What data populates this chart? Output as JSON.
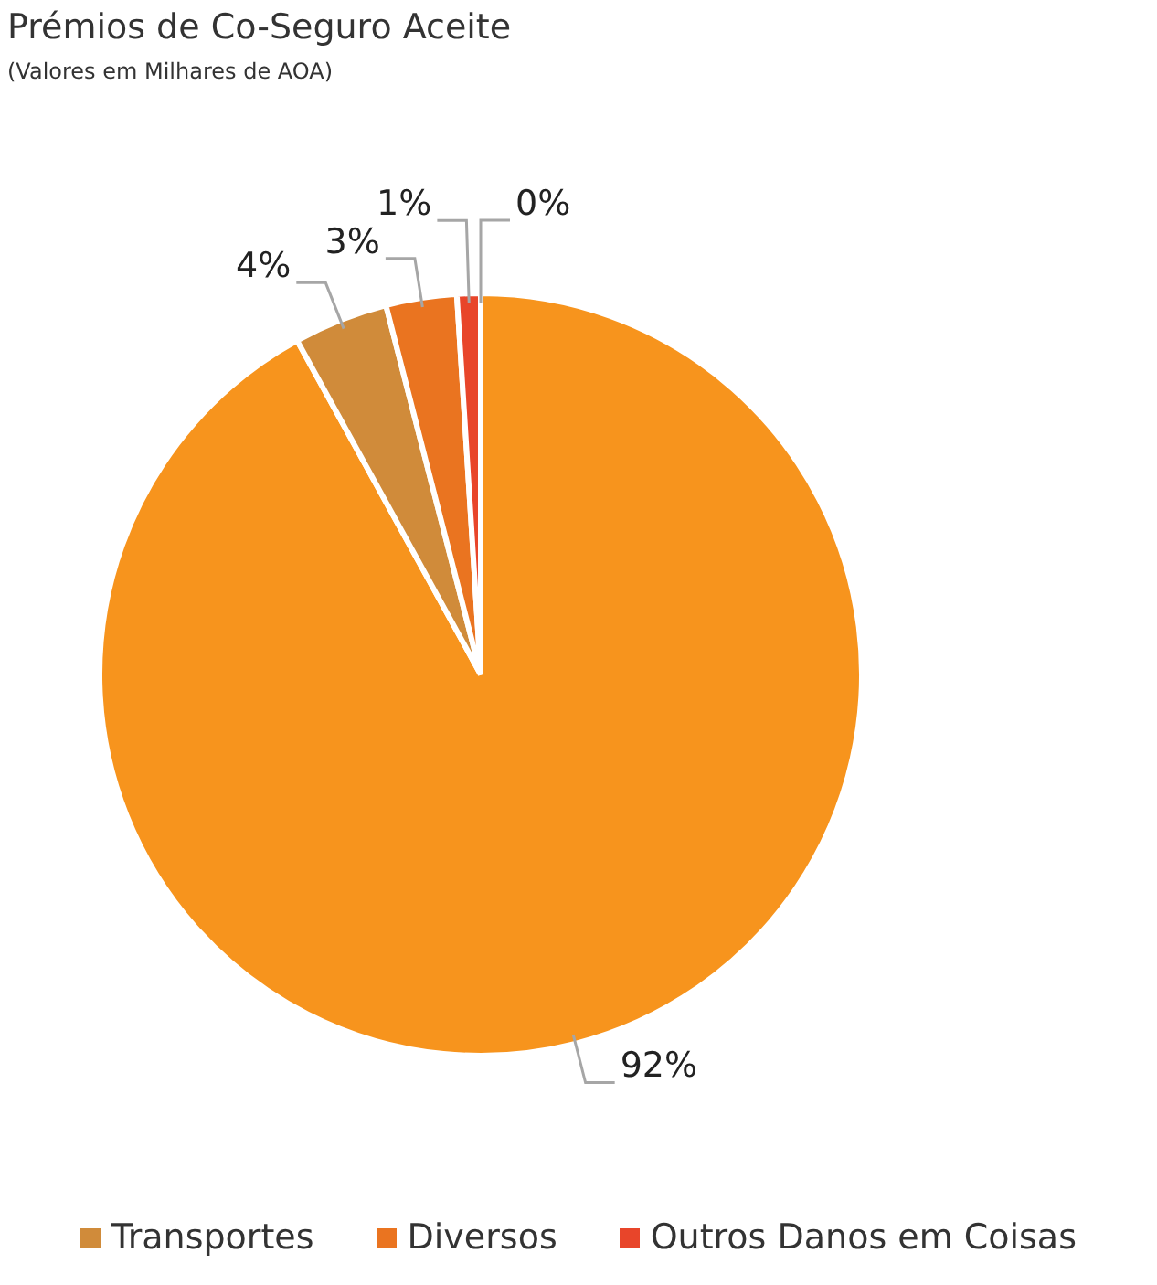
{
  "chart_data": {
    "type": "pie",
    "title": "Prémios de Co-Seguro Aceite",
    "subtitle": "(Valores em Milhares de AOA)",
    "categories": [
      null,
      "Transportes",
      "Diversos",
      "Outros Danos em Coisas",
      null
    ],
    "values": [
      92,
      4,
      3,
      1,
      0
    ],
    "value_labels": [
      "92%",
      "4%",
      "3%",
      "1%",
      "0%"
    ],
    "colors": [
      "#f7941d",
      "#d08b3a",
      "#ea7420",
      "#e8452a",
      "#f0a050"
    ],
    "legend": "bottom"
  }
}
